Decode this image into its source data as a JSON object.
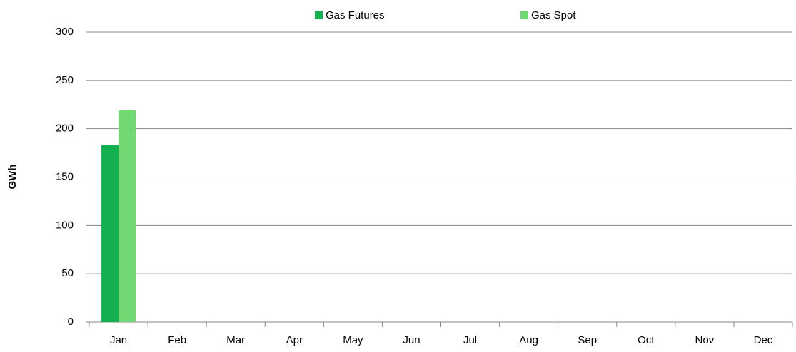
{
  "chart_data": {
    "type": "bar",
    "y_label": "GWh",
    "categories": [
      "Jan",
      "Feb",
      "Mar",
      "Apr",
      "May",
      "Jun",
      "Jul",
      "Aug",
      "Sep",
      "Oct",
      "Nov",
      "Dec"
    ],
    "series": [
      {
        "name": "Gas Futures",
        "color": "#12b04f",
        "values": [
          183,
          null,
          null,
          null,
          null,
          null,
          null,
          null,
          null,
          null,
          null,
          null
        ]
      },
      {
        "name": "Gas Spot",
        "color": "#72d874",
        "values": [
          219,
          null,
          null,
          null,
          null,
          null,
          null,
          null,
          null,
          null,
          null,
          null
        ]
      }
    ],
    "ylim": [
      0,
      300
    ],
    "yticks": [
      0,
      50,
      100,
      150,
      200,
      250,
      300
    ],
    "grid": true,
    "legend": "top"
  }
}
